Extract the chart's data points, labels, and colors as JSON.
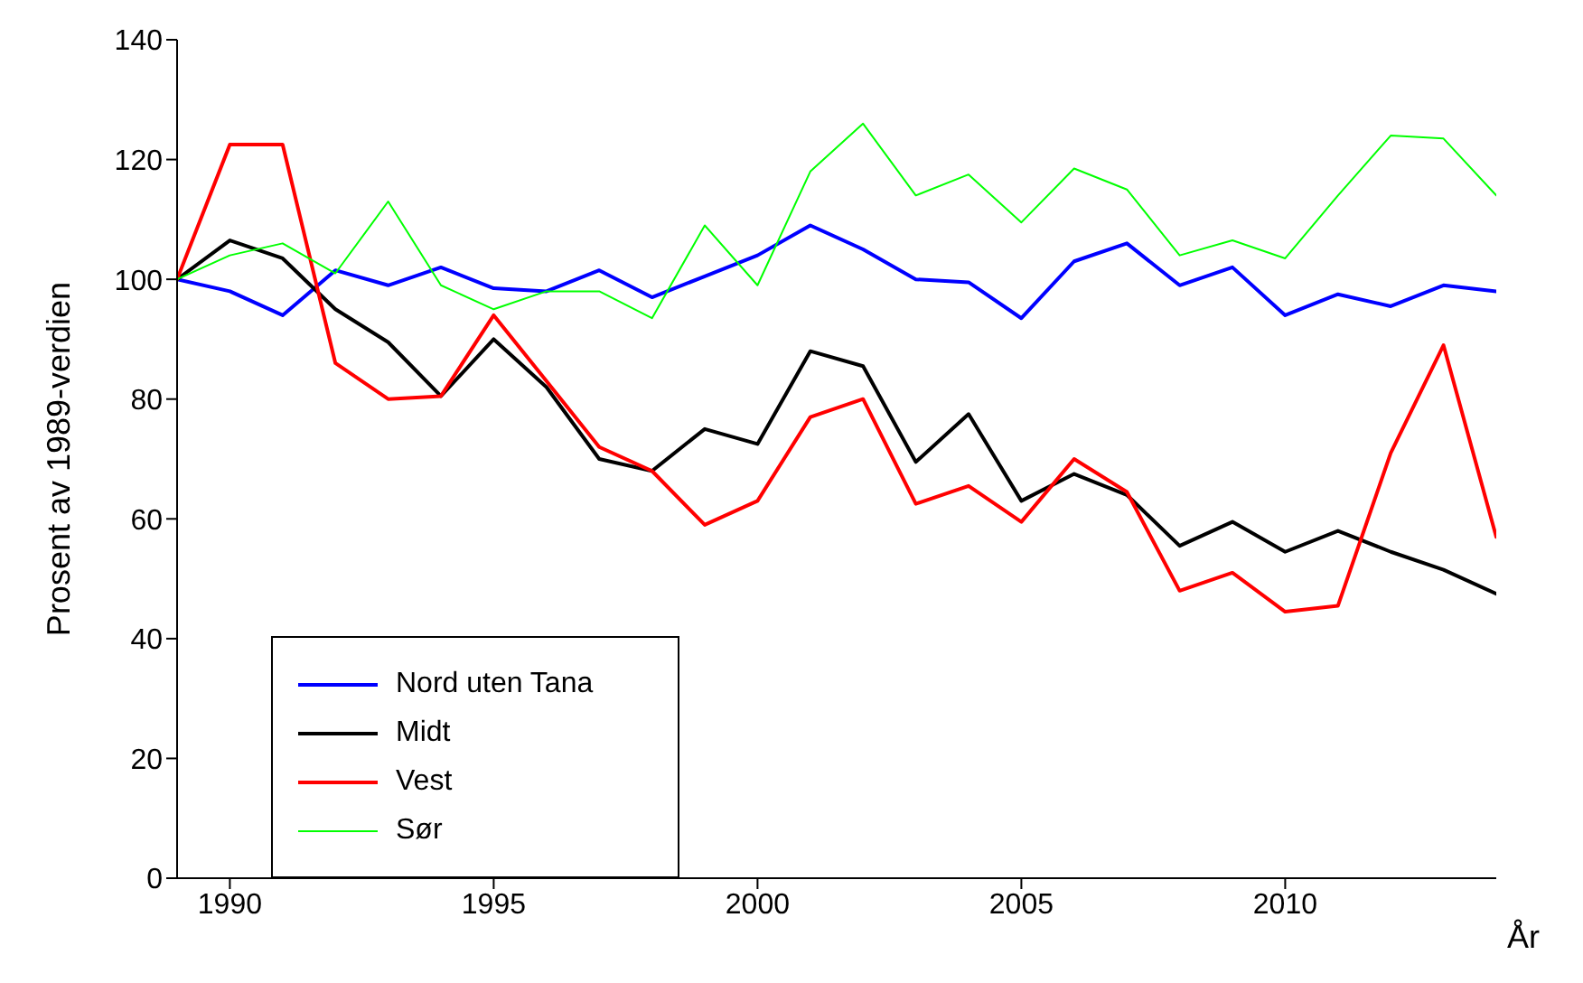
{
  "chart_data": {
    "type": "line",
    "xlabel": "År",
    "ylabel": "Prosent av 1989-verdien",
    "x": [
      1989,
      1990,
      1991,
      1992,
      1993,
      1994,
      1995,
      1996,
      1997,
      1998,
      1999,
      2000,
      2001,
      2002,
      2003,
      2004,
      2005,
      2006,
      2007,
      2008,
      2009,
      2010,
      2011,
      2012,
      2013,
      2014
    ],
    "series": [
      {
        "name": "Nord uten Tana",
        "color": "#0000ff",
        "values": [
          100,
          98,
          94,
          101.5,
          99,
          102,
          98.5,
          98,
          101.5,
          97,
          100.5,
          104,
          109,
          105,
          100,
          99.5,
          93.5,
          103,
          106,
          99,
          102,
          94,
          97.5,
          95.5,
          99,
          98
        ]
      },
      {
        "name": "Midt",
        "color": "#000000",
        "values": [
          100,
          106.5,
          103.5,
          95,
          89.5,
          80.5,
          90,
          82,
          70,
          68,
          75,
          72.5,
          88,
          85.5,
          69.5,
          77.5,
          63,
          67.5,
          64,
          55.5,
          59.5,
          54.5,
          58,
          54.5,
          51.5,
          47.5
        ]
      },
      {
        "name": "Vest",
        "color": "#ff0000",
        "values": [
          100,
          122.5,
          122.5,
          86,
          80,
          80.5,
          94,
          83,
          72,
          68,
          59,
          63,
          77,
          80,
          62.5,
          65.5,
          59.5,
          70,
          64.5,
          48,
          51,
          44.5,
          45.5,
          71,
          89,
          57
        ]
      },
      {
        "name": "Sør",
        "color": "#00ff00",
        "values": [
          100,
          104,
          106,
          101,
          113,
          99,
          95,
          98,
          98,
          93.5,
          109,
          99,
          118,
          126,
          114,
          117.5,
          109.5,
          118.5,
          115,
          104,
          106.5,
          103.5,
          114,
          124,
          123.5,
          114
        ]
      }
    ],
    "xlim": [
      1989,
      2014
    ],
    "xticks": [
      1990,
      1995,
      2000,
      2005,
      2010
    ],
    "ylim": [
      0,
      140
    ],
    "yticks": [
      0,
      20,
      40,
      60,
      80,
      100,
      120,
      140
    ],
    "grid": false,
    "legend": "bottom left",
    "marker": "none",
    "line_style": "solid"
  }
}
